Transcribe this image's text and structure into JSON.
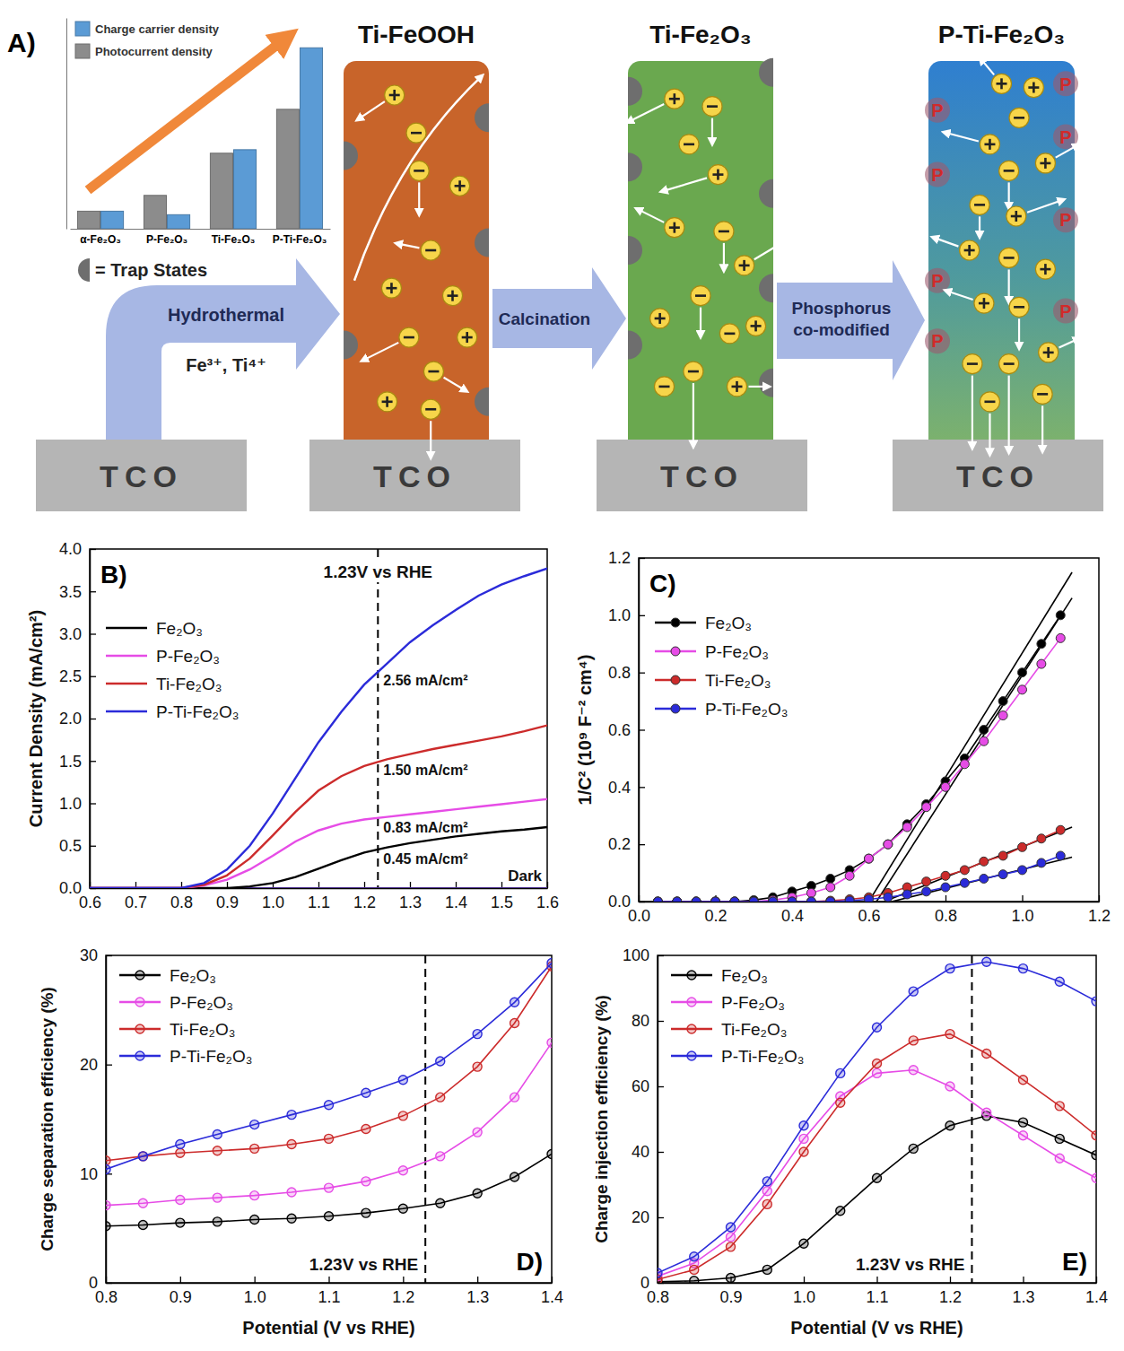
{
  "chart_data": [
    {
      "type": "bar",
      "categories": [
        "α-Fe₂O₃",
        "P-Fe₂O₃",
        "Ti-Fe₂O₃",
        "P-Ti-Fe₂O₃"
      ],
      "series": [
        {
          "name": "Charge carrier density",
          "color": "#5b9bd5",
          "values": [
            1.0,
            0.8,
            4.5,
            10.3
          ]
        },
        {
          "name": "Photocurrent density",
          "color": "#8c8c8c",
          "values": [
            1.0,
            1.9,
            4.3,
            6.8
          ]
        }
      ],
      "ylim": [
        0,
        12
      ],
      "tick_labels": "x",
      "legend": "upper left"
    },
    {
      "type": "line",
      "panel_label": "B)",
      "y_label": "Current Density (mA/cm²)",
      "x": [
        0.6,
        0.65,
        0.7,
        0.75,
        0.8,
        0.85,
        0.9,
        0.95,
        1.0,
        1.05,
        1.1,
        1.15,
        1.2,
        1.25,
        1.3,
        1.35,
        1.4,
        1.45,
        1.5,
        1.55,
        1.6
      ],
      "series": [
        {
          "name": "Fe₂O₃",
          "color": "#000000",
          "values": [
            0,
            0,
            0,
            0,
            0,
            0,
            0,
            0.02,
            0.06,
            0.13,
            0.23,
            0.33,
            0.42,
            0.48,
            0.53,
            0.57,
            0.61,
            0.64,
            0.67,
            0.69,
            0.72
          ]
        },
        {
          "name": "P-Fe₂O₃",
          "color": "#e64ce6",
          "values": [
            0,
            0,
            0,
            0,
            0,
            0.03,
            0.1,
            0.22,
            0.38,
            0.55,
            0.68,
            0.76,
            0.81,
            0.84,
            0.87,
            0.9,
            0.93,
            0.96,
            0.99,
            1.02,
            1.05
          ]
        },
        {
          "name": "Ti-Fe₂O₃",
          "color": "#cc2b2b",
          "values": [
            0,
            0,
            0,
            0,
            0,
            0.04,
            0.15,
            0.35,
            0.62,
            0.9,
            1.15,
            1.32,
            1.44,
            1.52,
            1.58,
            1.64,
            1.69,
            1.74,
            1.79,
            1.85,
            1.92
          ]
        },
        {
          "name": "P-Ti-Fe₂O₃",
          "color": "#2b2bd9",
          "values": [
            0,
            0,
            0,
            0,
            0,
            0.06,
            0.22,
            0.5,
            0.88,
            1.3,
            1.72,
            2.08,
            2.4,
            2.65,
            2.9,
            3.1,
            3.28,
            3.45,
            3.58,
            3.68,
            3.77
          ]
        }
      ],
      "dark": {
        "label": "Dark",
        "color": "#4b2f8f",
        "values": [
          0,
          0,
          0,
          0,
          0,
          0,
          0,
          0,
          0,
          0,
          0,
          0,
          0,
          0,
          0,
          0,
          0,
          0,
          0,
          0,
          0
        ]
      },
      "xlim": [
        0.6,
        1.6
      ],
      "xticks": [
        0.6,
        0.7,
        0.8,
        0.9,
        {
          "value": 1.0,
          "label": "1.0"
        },
        1.1,
        1.2,
        1.3,
        1.4,
        1.5,
        1.6
      ],
      "ylim": [
        0,
        4
      ],
      "yticks": [
        {
          "value": 0,
          "label": "0.0"
        },
        0.5,
        {
          "value": 1,
          "label": "1.0"
        },
        1.5,
        {
          "value": 2,
          "label": "2.0"
        },
        2.5,
        {
          "value": 3,
          "label": "3.0"
        },
        3.5,
        {
          "value": 4,
          "label": "4.0"
        }
      ],
      "legend": "upper left",
      "ref_line": {
        "x": 1.23,
        "label": "1.23V vs RHE"
      },
      "annotations": [
        {
          "text": "2.56 mA/cm²",
          "x": 1.23,
          "y": 2.56
        },
        {
          "text": "1.50 mA/cm²",
          "x": 1.23,
          "y": 1.5
        },
        {
          "text": "0.83 mA/cm²",
          "x": 1.23,
          "y": 0.83
        },
        {
          "text": "0.45 mA/cm²",
          "x": 1.23,
          "y": 0.45
        }
      ]
    },
    {
      "type": "line",
      "marker": "circle",
      "panel_label": "C)",
      "y_label": "1/C² (10⁹ F⁻² cm⁴)",
      "x": [
        0.05,
        0.1,
        0.15,
        0.2,
        0.25,
        0.3,
        0.35,
        0.4,
        0.45,
        0.5,
        0.55,
        0.6,
        0.65,
        0.7,
        0.75,
        0.8,
        0.85,
        0.9,
        0.95,
        1.0,
        1.05,
        1.1
      ],
      "series": [
        {
          "name": "Fe₂O₃",
          "color": "#000000",
          "values": [
            0,
            0,
            0,
            0,
            0,
            0.005,
            0.015,
            0.035,
            0.055,
            0.08,
            0.11,
            0.15,
            0.2,
            0.27,
            0.34,
            0.42,
            0.5,
            0.6,
            0.7,
            0.8,
            0.9,
            1.0
          ]
        },
        {
          "name": "P-Fe₂O₃",
          "color": "#e64ce6",
          "values": [
            0,
            0,
            0,
            0,
            0,
            0,
            0.005,
            0.015,
            0.03,
            0.05,
            0.09,
            0.15,
            0.2,
            0.26,
            0.33,
            0.4,
            0.48,
            0.56,
            0.65,
            0.74,
            0.83,
            0.92
          ]
        },
        {
          "name": "Ti-Fe₂O₃",
          "color": "#cc2b2b",
          "values": [
            0,
            0,
            0,
            0,
            0,
            0,
            0,
            0,
            0,
            0.003,
            0.008,
            0.015,
            0.03,
            0.05,
            0.07,
            0.09,
            0.11,
            0.14,
            0.16,
            0.19,
            0.22,
            0.25
          ]
        },
        {
          "name": "P-Ti-Fe₂O₃",
          "color": "#2b2bd9",
          "values": [
            0,
            0,
            0,
            0,
            0,
            0,
            0,
            0,
            0,
            0,
            0.003,
            0.008,
            0.015,
            0.025,
            0.035,
            0.05,
            0.065,
            0.08,
            0.095,
            0.11,
            0.135,
            0.16
          ]
        }
      ],
      "fit_lines": [
        {
          "color": "#000000",
          "x": [
            0.6,
            1.13
          ],
          "values": [
            0,
            1.15
          ]
        },
        {
          "color": "#000000",
          "x": [
            0.62,
            1.13
          ],
          "values": [
            0,
            1.06
          ]
        },
        {
          "color": "#000000",
          "x": [
            0.64,
            1.13
          ],
          "values": [
            0,
            0.26
          ]
        },
        {
          "color": "#000000",
          "x": [
            0.66,
            1.13
          ],
          "values": [
            0,
            0.155
          ]
        }
      ],
      "xlim": [
        0,
        1.2
      ],
      "xticks": [
        {
          "value": 0,
          "label": "0.0"
        },
        0.2,
        0.4,
        0.6,
        0.8,
        {
          "value": 1,
          "label": "1.0"
        },
        1.2
      ],
      "ylim": [
        0,
        1.2
      ],
      "yticks": [
        {
          "value": 0,
          "label": "0.0"
        },
        0.2,
        0.4,
        0.6,
        0.8,
        {
          "value": 1,
          "label": "1.0"
        },
        1.2
      ],
      "legend": "upper left"
    },
    {
      "type": "line",
      "marker": "open_circle",
      "panel_label": "D)",
      "x_label": "Potential (V vs RHE)",
      "y_label": "Charge separation efficiency (%)",
      "x": [
        0.8,
        0.85,
        0.9,
        0.95,
        1.0,
        1.05,
        1.1,
        1.15,
        1.2,
        1.25,
        1.3,
        1.35,
        1.4
      ],
      "series": [
        {
          "name": "Fe₂O₃",
          "color": "#000000",
          "values": [
            5.2,
            5.3,
            5.5,
            5.6,
            5.8,
            5.9,
            6.1,
            6.4,
            6.8,
            7.3,
            8.2,
            9.7,
            11.8
          ]
        },
        {
          "name": "P-Fe₂O₃",
          "color": "#e64ce6",
          "values": [
            7.1,
            7.3,
            7.6,
            7.8,
            8.0,
            8.3,
            8.7,
            9.3,
            10.3,
            11.6,
            13.8,
            17.0,
            22.0
          ]
        },
        {
          "name": "Ti-Fe₂O₃",
          "color": "#cc2b2b",
          "values": [
            11.2,
            11.6,
            11.9,
            12.1,
            12.3,
            12.7,
            13.2,
            14.1,
            15.3,
            17.0,
            19.8,
            23.8,
            29.0
          ]
        },
        {
          "name": "P-Ti-Fe₂O₃",
          "color": "#2b2bd9",
          "values": [
            10.4,
            11.6,
            12.7,
            13.6,
            14.5,
            15.4,
            16.3,
            17.4,
            18.6,
            20.3,
            22.8,
            25.7,
            29.3
          ]
        }
      ],
      "xlim": [
        0.8,
        1.4
      ],
      "xticks": [
        0.8,
        0.9,
        {
          "value": 1,
          "label": "1.0"
        },
        1.1,
        1.2,
        1.3,
        1.4
      ],
      "ylim": [
        0,
        30
      ],
      "yticks": [
        0,
        10,
        20,
        30
      ],
      "legend": "upper left",
      "ref_line": {
        "x": 1.23,
        "label": "1.23V vs RHE"
      }
    },
    {
      "type": "line",
      "marker": "open_circle",
      "panel_label": "E)",
      "x_label": "Potential (V vs RHE)",
      "y_label": "Charge injection efficiency (%)",
      "x": [
        0.8,
        0.85,
        0.9,
        0.95,
        1.0,
        1.05,
        1.1,
        1.15,
        1.2,
        1.25,
        1.3,
        1.35,
        1.4
      ],
      "series": [
        {
          "name": "Fe₂O₃",
          "color": "#000000",
          "values": [
            0.3,
            0.6,
            1.5,
            4,
            12,
            22,
            32,
            41,
            48,
            51,
            49,
            44,
            39
          ]
        },
        {
          "name": "P-Fe₂O₃",
          "color": "#e64ce6",
          "values": [
            2,
            6,
            14,
            28,
            44,
            57,
            64,
            65,
            60,
            52,
            45,
            38,
            32
          ]
        },
        {
          "name": "Ti-Fe₂O₃",
          "color": "#cc2b2b",
          "values": [
            1,
            4,
            11,
            24,
            40,
            55,
            67,
            74,
            76,
            70,
            62,
            54,
            45
          ]
        },
        {
          "name": "P-Ti-Fe₂O₃",
          "color": "#2b2bd9",
          "values": [
            3,
            8,
            17,
            31,
            48,
            64,
            78,
            89,
            96,
            98,
            96,
            92,
            86
          ]
        }
      ],
      "xlim": [
        0.8,
        1.4
      ],
      "xticks": [
        0.8,
        0.9,
        {
          "value": 1,
          "label": "1.0"
        },
        1.1,
        1.2,
        1.3,
        1.4
      ],
      "ylim": [
        0,
        100
      ],
      "yticks": [
        0,
        20,
        40,
        60,
        80,
        100
      ],
      "legend": "upper left",
      "ref_line": {
        "x": 1.23,
        "label": "1.23V vs RHE"
      }
    }
  ],
  "diagram": {
    "panel_label": "A)",
    "trap_states_label": "= Trap States",
    "substrate": "TCO",
    "stages": [
      "Ti-FeOOH",
      "Ti-Fe₂O₃",
      "P-Ti-Fe₂O₃"
    ],
    "steps": [
      {
        "label": "Hydrothermal",
        "sublabel": "Fe³⁺, Ti⁴⁺"
      },
      {
        "label": "Calcination"
      },
      {
        "label": "Phosphorus co-modified"
      }
    ],
    "dopant_marker": "P"
  }
}
